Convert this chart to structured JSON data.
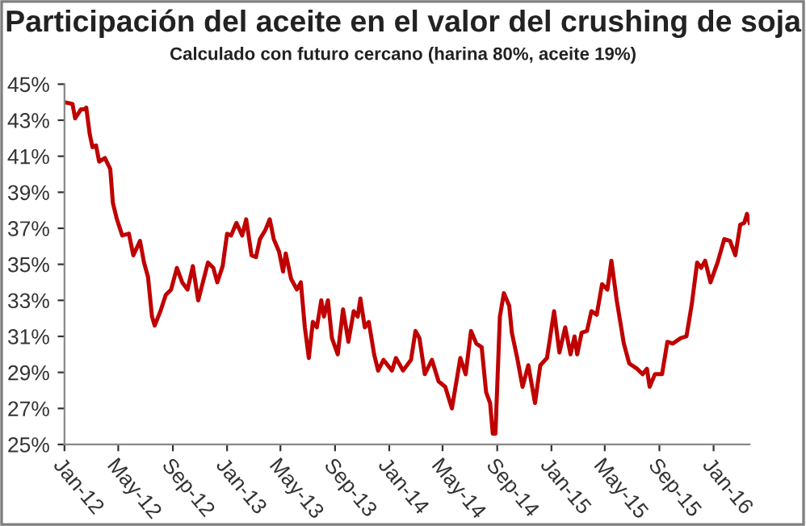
{
  "chart_data": {
    "type": "line",
    "title": "Participación del aceite en el valor del crushing de soja",
    "subtitle": "Calculado con futuro cercano (harina 80%, aceite 19%)",
    "series": [
      {
        "color": "#c00000",
        "x": [
          "2012-01-01",
          "2012-01-19",
          "2012-01-25",
          "2012-02-07",
          "2012-02-15",
          "2012-02-19",
          "2012-02-27",
          "2012-03-04",
          "2012-03-12",
          "2012-03-19",
          "2012-04-01",
          "2012-04-13",
          "2012-04-19",
          "2012-04-28",
          "2012-05-10",
          "2012-05-25",
          "2012-06-04",
          "2012-06-19",
          "2012-06-28",
          "2012-07-07",
          "2012-07-16",
          "2012-07-22",
          "2012-08-04",
          "2012-08-16",
          "2012-08-28",
          "2012-09-10",
          "2012-09-22",
          "2012-10-04",
          "2012-10-16",
          "2012-10-28",
          "2012-11-19",
          "2012-12-01",
          "2012-12-10",
          "2012-12-22",
          "2013-01-01",
          "2013-01-10",
          "2013-01-22",
          "2013-02-04",
          "2013-02-13",
          "2013-02-25",
          "2013-03-07",
          "2013-03-16",
          "2013-03-28",
          "2013-04-07",
          "2013-04-16",
          "2013-04-28",
          "2013-05-07",
          "2013-05-13",
          "2013-05-25",
          "2013-06-07",
          "2013-06-16",
          "2013-06-25",
          "2013-07-04",
          "2013-07-13",
          "2013-07-22",
          "2013-08-01",
          "2013-08-07",
          "2013-08-16",
          "2013-08-25",
          "2013-09-07",
          "2013-09-19",
          "2013-10-01",
          "2013-10-13",
          "2013-10-22",
          "2013-10-28",
          "2013-11-07",
          "2013-11-16",
          "2013-11-28",
          "2013-12-07",
          "2013-12-19",
          "2014-01-07",
          "2014-01-16",
          "2014-02-01",
          "2014-02-19",
          "2014-03-01",
          "2014-03-10",
          "2014-03-22",
          "2014-04-07",
          "2014-04-22",
          "2014-05-07",
          "2014-05-22",
          "2014-06-10",
          "2014-06-22",
          "2014-07-04",
          "2014-07-16",
          "2014-07-28",
          "2014-08-07",
          "2014-08-16",
          "2014-08-22",
          "2014-08-28",
          "2014-09-07",
          "2014-09-16",
          "2014-09-28",
          "2014-10-04",
          "2014-10-16",
          "2014-10-28",
          "2014-11-10",
          "2014-11-25",
          "2014-12-07",
          "2014-12-22",
          "2015-01-07",
          "2015-01-19",
          "2015-02-01",
          "2015-02-13",
          "2015-02-22",
          "2015-02-28",
          "2015-03-10",
          "2015-03-22",
          "2015-04-01",
          "2015-04-13",
          "2015-04-25",
          "2015-05-07",
          "2015-05-16",
          "2015-05-28",
          "2015-06-13",
          "2015-06-25",
          "2015-07-13",
          "2015-07-25",
          "2015-08-04",
          "2015-08-10",
          "2015-08-22",
          "2015-09-07",
          "2015-09-19",
          "2015-10-01",
          "2015-10-19",
          "2015-11-01",
          "2015-11-13",
          "2015-11-25",
          "2015-12-04",
          "2015-12-13",
          "2015-12-25",
          "2016-01-10",
          "2016-01-25",
          "2016-02-07",
          "2016-02-19",
          "2016-03-01",
          "2016-03-10",
          "2016-03-16",
          "2016-03-22"
        ],
        "values": [
          44.0,
          43.9,
          43.1,
          43.6,
          43.6,
          43.7,
          42.2,
          41.5,
          41.6,
          40.7,
          40.9,
          40.3,
          38.4,
          37.5,
          36.6,
          36.7,
          35.5,
          36.3,
          35.1,
          34.3,
          32.1,
          31.6,
          32.4,
          33.3,
          33.6,
          34.8,
          34.0,
          33.6,
          34.9,
          33.0,
          35.1,
          34.8,
          34.0,
          34.9,
          36.7,
          36.6,
          37.3,
          36.6,
          37.5,
          35.5,
          35.4,
          36.4,
          36.9,
          37.5,
          36.4,
          35.7,
          34.6,
          35.6,
          34.2,
          33.6,
          34.0,
          31.5,
          29.8,
          31.8,
          31.5,
          33.0,
          32.1,
          33.0,
          30.9,
          30.0,
          32.5,
          30.7,
          32.4,
          32.1,
          33.1,
          31.5,
          31.8,
          30.0,
          29.1,
          29.7,
          29.1,
          29.8,
          29.1,
          29.7,
          31.3,
          30.9,
          28.9,
          29.7,
          28.5,
          28.2,
          27.0,
          29.8,
          28.9,
          31.3,
          30.6,
          30.4,
          27.9,
          27.3,
          25.6,
          25.6,
          32.1,
          33.4,
          32.7,
          31.2,
          29.8,
          28.2,
          29.4,
          27.3,
          29.4,
          29.8,
          32.4,
          30.1,
          31.5,
          30.0,
          31.0,
          30.0,
          31.2,
          31.3,
          32.4,
          32.2,
          33.9,
          33.6,
          35.2,
          33.0,
          30.6,
          29.5,
          29.2,
          28.9,
          29.2,
          28.2,
          28.9,
          28.9,
          30.7,
          30.6,
          30.9,
          31.0,
          32.8,
          35.1,
          34.8,
          35.2,
          34.0,
          35.1,
          36.4,
          36.3,
          35.5,
          37.2,
          37.3,
          37.8,
          37.3
        ]
      }
    ],
    "xlim": [
      "2012-01-01",
      "2016-03-22"
    ],
    "xticks": [
      {
        "value": "2012-01-01",
        "label": "Jan-12"
      },
      {
        "value": "2012-05-01",
        "label": "May-12"
      },
      {
        "value": "2012-09-01",
        "label": "Sep-12"
      },
      {
        "value": "2013-01-01",
        "label": "Jan-13"
      },
      {
        "value": "2013-05-01",
        "label": "May-13"
      },
      {
        "value": "2013-09-01",
        "label": "Sep-13"
      },
      {
        "value": "2014-01-01",
        "label": "Jan-14"
      },
      {
        "value": "2014-05-01",
        "label": "May-14"
      },
      {
        "value": "2014-09-01",
        "label": "Sep-14"
      },
      {
        "value": "2015-01-01",
        "label": "Jan-15"
      },
      {
        "value": "2015-05-01",
        "label": "May-15"
      },
      {
        "value": "2015-09-01",
        "label": "Sep-15"
      },
      {
        "value": "2016-01-01",
        "label": "Jan-16"
      }
    ],
    "ylim": [
      25,
      45
    ],
    "yticks": [
      {
        "value": 25,
        "label": "25%"
      },
      {
        "value": 27,
        "label": "27%"
      },
      {
        "value": 29,
        "label": "29%"
      },
      {
        "value": 31,
        "label": "31%"
      },
      {
        "value": 33,
        "label": "33%"
      },
      {
        "value": 35,
        "label": "35%"
      },
      {
        "value": 37,
        "label": "37%"
      },
      {
        "value": 39,
        "label": "39%"
      },
      {
        "value": 41,
        "label": "41%"
      },
      {
        "value": 43,
        "label": "43%"
      },
      {
        "value": 45,
        "label": "45%"
      }
    ],
    "grid": false,
    "legend": false,
    "marker": "none",
    "line_style": "solid"
  }
}
